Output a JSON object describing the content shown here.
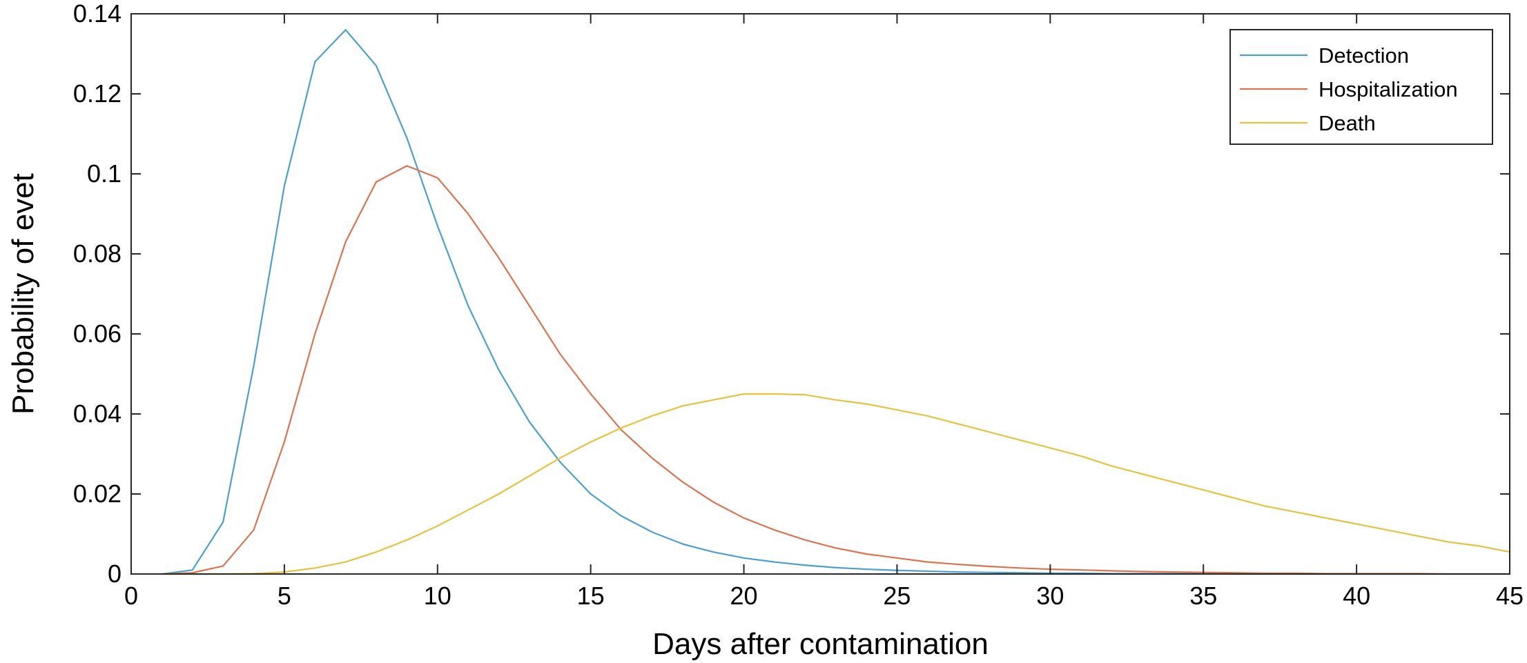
{
  "chart_data": {
    "type": "line",
    "title": "",
    "xlabel": "Days after contamination",
    "ylabel": "Probability of evet",
    "xlim": [
      0,
      45
    ],
    "ylim": [
      0,
      0.14
    ],
    "xticks": [
      0,
      5,
      10,
      15,
      20,
      25,
      30,
      35,
      40,
      45
    ],
    "yticks": [
      0,
      0.02,
      0.04,
      0.06,
      0.08,
      0.1,
      0.12,
      0.14
    ],
    "xtick_labels": [
      "0",
      "5",
      "10",
      "15",
      "20",
      "25",
      "30",
      "35",
      "40",
      "45"
    ],
    "ytick_labels": [
      "0",
      "0.02",
      "0.04",
      "0.06",
      "0.08",
      "0.1",
      "0.12",
      "0.14"
    ],
    "grid": false,
    "legend_position": "top-right",
    "x": [
      1,
      2,
      3,
      4,
      5,
      6,
      7,
      8,
      9,
      10,
      11,
      12,
      13,
      14,
      15,
      16,
      17,
      18,
      19,
      20,
      21,
      22,
      23,
      24,
      25,
      26,
      27,
      28,
      29,
      30,
      31,
      32,
      33,
      34,
      35,
      36,
      37,
      38,
      39,
      40,
      41,
      42,
      43,
      44,
      45
    ],
    "series": [
      {
        "name": "Detection",
        "color": "#4a9fd0",
        "values": [
          0,
          0.001,
          0.013,
          0.052,
          0.097,
          0.128,
          0.136,
          0.127,
          0.109,
          0.087,
          0.067,
          0.051,
          0.038,
          0.028,
          0.02,
          0.0145,
          0.0105,
          0.0075,
          0.0055,
          0.004,
          0.003,
          0.0022,
          0.0016,
          0.0012,
          0.0009,
          0.0007,
          0.0005,
          0.0004,
          0.0003,
          0.0002,
          0.0002,
          0.0001,
          0.0001,
          0.0001,
          0.0001,
          0,
          0,
          0,
          0,
          0,
          0,
          0,
          0,
          0,
          0
        ]
      },
      {
        "name": "Hospitalization",
        "color": "#d9734e",
        "values": [
          0,
          0.0003,
          0.002,
          0.011,
          0.033,
          0.06,
          0.083,
          0.098,
          0.102,
          0.099,
          0.09,
          0.079,
          0.067,
          0.055,
          0.045,
          0.036,
          0.029,
          0.023,
          0.018,
          0.014,
          0.011,
          0.0085,
          0.0065,
          0.005,
          0.004,
          0.003,
          0.0024,
          0.0019,
          0.0015,
          0.0012,
          0.001,
          0.0008,
          0.0006,
          0.0005,
          0.0004,
          0.0003,
          0.0002,
          0.0002,
          0.0001,
          0.0001,
          0.0001,
          0.0001,
          0,
          0,
          0
        ]
      },
      {
        "name": "Death",
        "color": "#e8c13c",
        "values": [
          0,
          0,
          0,
          0.0001,
          0.0005,
          0.0015,
          0.003,
          0.0055,
          0.0085,
          0.012,
          0.016,
          0.02,
          0.0245,
          0.029,
          0.033,
          0.0365,
          0.0395,
          0.042,
          0.0435,
          0.045,
          0.045,
          0.0448,
          0.0435,
          0.0425,
          0.041,
          0.0395,
          0.0375,
          0.0355,
          0.0335,
          0.0315,
          0.0295,
          0.027,
          0.025,
          0.023,
          0.021,
          0.019,
          0.017,
          0.0155,
          0.014,
          0.0125,
          0.011,
          0.0095,
          0.008,
          0.007,
          0.0055
        ]
      }
    ]
  }
}
